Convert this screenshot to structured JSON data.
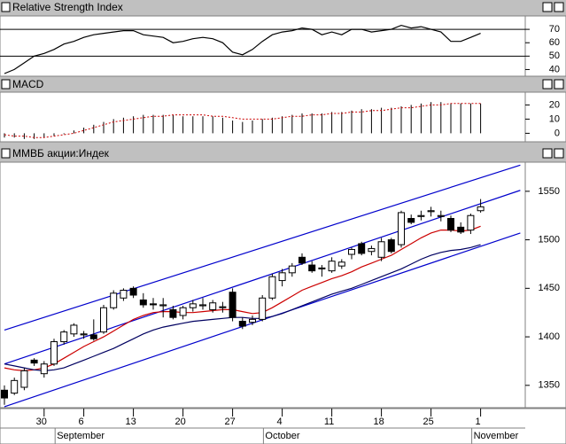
{
  "chart_data": [
    {
      "type": "line",
      "title": "Relative Strength Index",
      "color": "#000000",
      "values": [
        37,
        40,
        45,
        50,
        52,
        55,
        59,
        61,
        64,
        66,
        67,
        68,
        69,
        69,
        66,
        65,
        64,
        60,
        61,
        63,
        64,
        63,
        60,
        53,
        51,
        55,
        61,
        66,
        68,
        69,
        71,
        70,
        66,
        68,
        66,
        70,
        70,
        68,
        69,
        70,
        73,
        71,
        72,
        70,
        68,
        61,
        61,
        64,
        67
      ],
      "reference_lines": [
        70,
        50
      ],
      "ylim": [
        35,
        80
      ],
      "yticks": [
        40,
        50,
        60,
        70
      ]
    },
    {
      "type": "bar",
      "title": "MACD",
      "ylim": [
        -6,
        29
      ],
      "yticks": [
        0,
        10,
        20
      ],
      "series": [
        {
          "style": "bar",
          "color": "#000000",
          "values": [
            -3,
            -3,
            -4,
            -4,
            -3,
            -2,
            0,
            2,
            4,
            6,
            8,
            10,
            11,
            12,
            13,
            13,
            13,
            13,
            12,
            12,
            12,
            12,
            11,
            9,
            8,
            9,
            10,
            11,
            12,
            13,
            14,
            14,
            14,
            15,
            15,
            16,
            17,
            17,
            18,
            18,
            19,
            20,
            21,
            22,
            22,
            21,
            21,
            21,
            21
          ]
        },
        {
          "style": "dashed",
          "color": "#cc0000",
          "values": [
            -1,
            -2,
            -2,
            -3,
            -3,
            -2,
            -1,
            0,
            2,
            4,
            6,
            8,
            9,
            10,
            11,
            12,
            12,
            13,
            13,
            13,
            13,
            12,
            12,
            11,
            10,
            10,
            10,
            10,
            11,
            12,
            12,
            13,
            13,
            14,
            14,
            15,
            15,
            16,
            16,
            17,
            18,
            18,
            19,
            20,
            20,
            21,
            21,
            21,
            21
          ]
        }
      ]
    },
    {
      "type": "candlestick",
      "title": "ММВБ акции:Индек",
      "ylim": [
        1327,
        1580
      ],
      "yticks": [
        1350,
        1400,
        1450,
        1500,
        1550
      ],
      "categories": [
        null,
        null,
        null,
        null,
        "30",
        null,
        null,
        null,
        "6",
        null,
        null,
        null,
        null,
        "13",
        null,
        null,
        null,
        null,
        "20",
        null,
        null,
        null,
        null,
        "27",
        null,
        null,
        null,
        null,
        "4",
        null,
        null,
        null,
        null,
        "11",
        null,
        null,
        null,
        null,
        "18",
        null,
        null,
        null,
        null,
        "25",
        null,
        null,
        null,
        null,
        "1"
      ],
      "months": [
        {
          "label": "September",
          "start": 6
        },
        {
          "label": "October",
          "start": 27
        },
        {
          "label": "November",
          "start": 48
        }
      ],
      "up_color": "#ffffff",
      "down_color": "#000000",
      "open": [
        1345,
        1342,
        1348,
        1376,
        1362,
        1372,
        1395,
        1403,
        1402,
        1402,
        1405,
        1430,
        1440,
        1450,
        1438,
        1434,
        1432,
        1428,
        1422,
        1430,
        1432,
        1428,
        1430,
        1446,
        1416,
        1415,
        1418,
        1440,
        1458,
        1466,
        1482,
        1474,
        1470,
        1468,
        1473,
        1485,
        1496,
        1488,
        1482,
        1500,
        1495,
        1522,
        1524,
        1529,
        1524,
        1522,
        1513,
        1510,
        1530
      ],
      "high": [
        1350,
        1358,
        1368,
        1378,
        1375,
        1398,
        1407,
        1414,
        1406,
        1418,
        1433,
        1448,
        1450,
        1452,
        1445,
        1440,
        1440,
        1432,
        1432,
        1438,
        1440,
        1438,
        1436,
        1450,
        1420,
        1422,
        1443,
        1465,
        1470,
        1476,
        1486,
        1478,
        1474,
        1482,
        1480,
        1492,
        1498,
        1494,
        1502,
        1502,
        1530,
        1526,
        1530,
        1534,
        1530,
        1525,
        1518,
        1527,
        1542
      ],
      "low": [
        1330,
        1340,
        1345,
        1370,
        1358,
        1370,
        1392,
        1400,
        1398,
        1396,
        1403,
        1428,
        1437,
        1440,
        1430,
        1428,
        1420,
        1418,
        1418,
        1426,
        1428,
        1425,
        1425,
        1416,
        1408,
        1412,
        1416,
        1438,
        1452,
        1462,
        1474,
        1466,
        1462,
        1466,
        1470,
        1480,
        1484,
        1484,
        1478,
        1486,
        1492,
        1516,
        1520,
        1524,
        1519,
        1508,
        1506,
        1506,
        1528
      ],
      "close": [
        1337,
        1355,
        1365,
        1373,
        1372,
        1395,
        1405,
        1412,
        1403,
        1398,
        1430,
        1445,
        1448,
        1443,
        1433,
        1433,
        1433,
        1420,
        1430,
        1434,
        1433,
        1435,
        1431,
        1420,
        1411,
        1418,
        1440,
        1462,
        1466,
        1473,
        1476,
        1468,
        1471,
        1478,
        1477,
        1490,
        1486,
        1491,
        1498,
        1488,
        1528,
        1518,
        1525,
        1530,
        1525,
        1510,
        1508,
        1525,
        1534
      ],
      "series": [
        {
          "color": "#cc0000",
          "values": [
            1368,
            1366,
            1365,
            1366,
            1368,
            1372,
            1378,
            1384,
            1390,
            1395,
            1400,
            1406,
            1412,
            1418,
            1422,
            1425,
            1426,
            1426,
            1425,
            1425,
            1426,
            1427,
            1428,
            1428,
            1426,
            1424,
            1425,
            1430,
            1436,
            1442,
            1448,
            1452,
            1456,
            1460,
            1463,
            1467,
            1472,
            1476,
            1480,
            1484,
            1490,
            1496,
            1502,
            1507,
            1510,
            1510,
            1509,
            1510,
            1514
          ]
        },
        {
          "color": "#000060",
          "values": [
            1372,
            1370,
            1368,
            1366,
            1365,
            1366,
            1368,
            1372,
            1376,
            1380,
            1384,
            1388,
            1393,
            1398,
            1403,
            1407,
            1410,
            1412,
            1414,
            1416,
            1417,
            1418,
            1419,
            1420,
            1420,
            1419,
            1419,
            1421,
            1424,
            1428,
            1432,
            1436,
            1440,
            1444,
            1447,
            1450,
            1454,
            1458,
            1462,
            1466,
            1470,
            1475,
            1480,
            1484,
            1487,
            1489,
            1490,
            1492,
            1495
          ]
        }
      ],
      "channel_lines": [
        {
          "color": "#0000cc",
          "x": [
            0,
            52
          ],
          "values": [
            1407,
            1577
          ]
        },
        {
          "color": "#0000cc",
          "x": [
            0,
            52
          ],
          "values": [
            1372,
            1551
          ]
        },
        {
          "color": "#0000cc",
          "x": [
            0,
            52
          ],
          "values": [
            1328,
            1507
          ]
        }
      ]
    }
  ]
}
